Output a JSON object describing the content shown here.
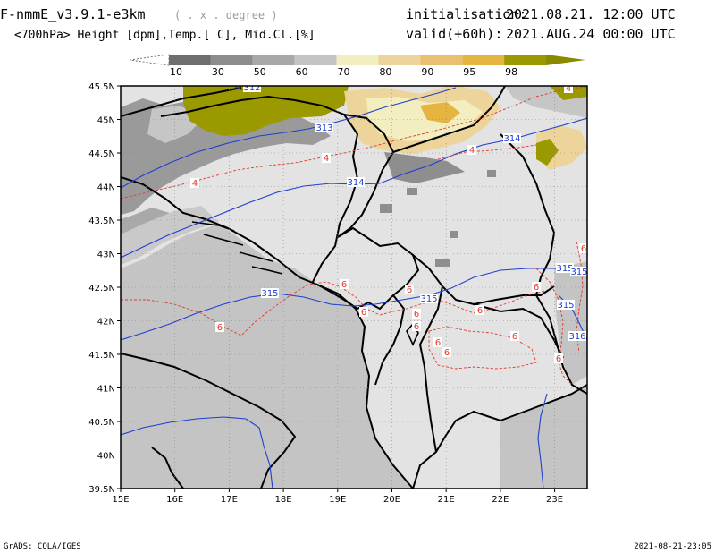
{
  "header": {
    "model": "F-nmmE_v3.9.1-e3km",
    "units_hint": "( . x . degree )",
    "subtitle": "<700hPa> Height [dpm],Temp.[ C], Mid.Cl.[%]",
    "init_label": "initialisation:",
    "init_value": "2021.08.21.   12:00 UTC",
    "valid_label": "valid(+60h):",
    "valid_value": "2021.AUG.24  00:00 UTC"
  },
  "colorbar": {
    "labels": [
      "10",
      "30",
      "50",
      "60",
      "70",
      "80",
      "90",
      "95",
      "98"
    ],
    "colors": [
      "#6e6e6e",
      "#8c8c8c",
      "#a8a8a8",
      "#c4c4c4",
      "#f2eec0",
      "#ecd49a",
      "#e8c070",
      "#e6b440",
      "#9a9a00"
    ]
  },
  "map": {
    "lat_labels": [
      "45.5N",
      "45N",
      "44.5N",
      "44N",
      "43.5N",
      "43N",
      "42.5N",
      "42N",
      "41.5N",
      "41N",
      "40.5N",
      "40N",
      "39.5N"
    ],
    "lon_labels": [
      "15E",
      "16E",
      "17E",
      "18E",
      "19E",
      "20E",
      "21E",
      "22E",
      "23E"
    ],
    "height_labels": [
      "312",
      "313",
      "314",
      "314",
      "315",
      "315",
      "315",
      "315",
      "315",
      "316"
    ],
    "temp_labels": [
      "4",
      "4",
      "4",
      "4",
      "6",
      "6",
      "6",
      "6",
      "6",
      "6",
      "6",
      "6",
      "6",
      "6",
      "6",
      "6",
      "6"
    ],
    "colors": {
      "land_fill": "#e3e3e3",
      "coast": "#000000",
      "height_contour": "#1f3fd0",
      "temp_contour": "#e23a2a",
      "cloud_gray": "#8e8e8e",
      "cloud_olive": "#9a9a00",
      "cloud_yellow": "#ecd49a"
    }
  },
  "footer": {
    "left": "GrADS: COLA/IGES",
    "right": "2021-08-21-23:05"
  }
}
